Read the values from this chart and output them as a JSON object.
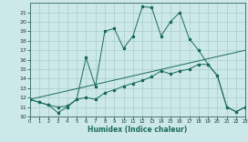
{
  "xlabel": "Humidex (Indice chaleur)",
  "background_color": "#cce8e8",
  "grid_color": "#aacccc",
  "line_color": "#1a6b5a",
  "xlim": [
    0,
    23
  ],
  "ylim": [
    10,
    22
  ],
  "yticks": [
    10,
    11,
    12,
    13,
    14,
    15,
    16,
    17,
    18,
    19,
    20,
    21
  ],
  "xticks": [
    0,
    1,
    2,
    3,
    4,
    5,
    6,
    7,
    8,
    9,
    10,
    11,
    12,
    13,
    14,
    15,
    16,
    17,
    18,
    19,
    20,
    21,
    22,
    23
  ],
  "line1_x": [
    0,
    1,
    2,
    3,
    4,
    5,
    6,
    7,
    8,
    9,
    10,
    11,
    12,
    13,
    14,
    15,
    16,
    17,
    18,
    19,
    20,
    21,
    22,
    23
  ],
  "line1_y": [
    11.8,
    11.5,
    11.2,
    10.4,
    11.0,
    11.8,
    16.2,
    13.2,
    19.0,
    19.3,
    17.2,
    18.5,
    21.6,
    21.5,
    18.5,
    20.0,
    21.0,
    18.2,
    17.0,
    15.5,
    14.3,
    11.0,
    10.5,
    11.0
  ],
  "line2_x": [
    0,
    1,
    2,
    3,
    4,
    5,
    6,
    7,
    8,
    9,
    10,
    11,
    12,
    13,
    14,
    15,
    16,
    17,
    18,
    19,
    20,
    21,
    22,
    23
  ],
  "line2_y": [
    11.8,
    11.5,
    11.2,
    11.0,
    11.1,
    11.8,
    12.0,
    11.8,
    12.5,
    12.8,
    13.2,
    13.5,
    13.8,
    14.2,
    14.8,
    14.5,
    14.8,
    15.0,
    15.5,
    15.5,
    14.3,
    11.0,
    10.5,
    11.0
  ],
  "line3_x": [
    0,
    23
  ],
  "line3_y": [
    11.8,
    17.0
  ]
}
